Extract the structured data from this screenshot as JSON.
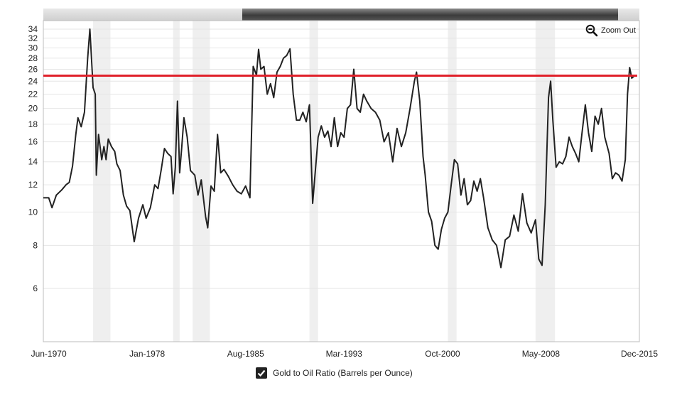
{
  "zoom": {
    "label": "Zoom Out",
    "icon": "zoom-out-icon"
  },
  "legend": {
    "checked": true,
    "label": "Gold to Oil Ratio (Barrels per Ounce)",
    "icon": "checkmark-icon"
  },
  "colors": {
    "series": "#222222",
    "reference": "#e0202a",
    "recession": "#efefef",
    "grid": "#e6e6e6"
  },
  "chart_data": {
    "type": "line",
    "title": "",
    "xlabel": "",
    "ylabel": "",
    "y_scale": "log",
    "ylim": [
      4.2,
      36
    ],
    "xlim": [
      "1970-01",
      "2015-12"
    ],
    "grid": true,
    "y_ticks": [
      6,
      8,
      10,
      12,
      14,
      16,
      18,
      20,
      22,
      24,
      26,
      28,
      30,
      32,
      34
    ],
    "x_ticks": [
      {
        "date": "1970-06",
        "label": "Jun-1970"
      },
      {
        "date": "1978-01",
        "label": "Jan-1978"
      },
      {
        "date": "1985-08",
        "label": "Aug-1985"
      },
      {
        "date": "1993-03",
        "label": "Mar-1993"
      },
      {
        "date": "2000-10",
        "label": "Oct-2000"
      },
      {
        "date": "2008-05",
        "label": "May-2008"
      },
      {
        "date": "2015-12",
        "label": "Dec-2015"
      }
    ],
    "reference_line": 24.9,
    "recessions": [
      [
        "1973-11",
        "1975-03"
      ],
      [
        "1980-01",
        "1980-07"
      ],
      [
        "1981-07",
        "1982-11"
      ],
      [
        "1990-07",
        "1991-03"
      ],
      [
        "2001-03",
        "2001-11"
      ],
      [
        "2007-12",
        "2009-06"
      ]
    ],
    "series": [
      {
        "name": "Gold to Oil Ratio (Barrels per Ounce)",
        "points": [
          [
            "1970-01",
            11.0
          ],
          [
            "1970-06",
            11.0
          ],
          [
            "1970-09",
            10.3
          ],
          [
            "1971-01",
            11.2
          ],
          [
            "1971-06",
            11.6
          ],
          [
            "1971-10",
            12.0
          ],
          [
            "1972-01",
            12.2
          ],
          [
            "1972-04",
            13.6
          ],
          [
            "1972-07",
            16.8
          ],
          [
            "1972-09",
            18.8
          ],
          [
            "1972-12",
            17.7
          ],
          [
            "1973-03",
            19.5
          ],
          [
            "1973-06",
            28.0
          ],
          [
            "1973-08",
            34.0
          ],
          [
            "1973-09",
            30.0
          ],
          [
            "1973-11",
            23.0
          ],
          [
            "1974-01",
            22.0
          ],
          [
            "1974-02",
            12.8
          ],
          [
            "1974-04",
            16.8
          ],
          [
            "1974-07",
            14.2
          ],
          [
            "1974-09",
            15.5
          ],
          [
            "1974-11",
            14.2
          ],
          [
            "1975-01",
            16.3
          ],
          [
            "1975-04",
            15.5
          ],
          [
            "1975-07",
            15.0
          ],
          [
            "1975-09",
            13.8
          ],
          [
            "1975-12",
            13.2
          ],
          [
            "1976-03",
            11.2
          ],
          [
            "1976-06",
            10.4
          ],
          [
            "1976-09",
            10.1
          ],
          [
            "1977-01",
            8.2
          ],
          [
            "1977-05",
            9.6
          ],
          [
            "1977-09",
            10.5
          ],
          [
            "1977-12",
            9.6
          ],
          [
            "1978-04",
            10.3
          ],
          [
            "1978-08",
            12.0
          ],
          [
            "1978-11",
            11.7
          ],
          [
            "1979-02",
            13.3
          ],
          [
            "1979-05",
            15.3
          ],
          [
            "1979-08",
            14.8
          ],
          [
            "1979-11",
            14.5
          ],
          [
            "1980-01",
            11.3
          ],
          [
            "1980-03",
            13.5
          ],
          [
            "1980-05",
            21.0
          ],
          [
            "1980-07",
            13.0
          ],
          [
            "1980-09",
            15.5
          ],
          [
            "1980-11",
            18.8
          ],
          [
            "1981-02",
            16.5
          ],
          [
            "1981-05",
            13.2
          ],
          [
            "1981-09",
            12.8
          ],
          [
            "1981-12",
            11.2
          ],
          [
            "1982-03",
            12.4
          ],
          [
            "1982-07",
            9.7
          ],
          [
            "1982-09",
            9.0
          ],
          [
            "1982-12",
            11.9
          ],
          [
            "1983-03",
            11.5
          ],
          [
            "1983-06",
            16.8
          ],
          [
            "1983-09",
            13.0
          ],
          [
            "1983-12",
            13.3
          ],
          [
            "1984-04",
            12.7
          ],
          [
            "1984-08",
            12.0
          ],
          [
            "1984-12",
            11.5
          ],
          [
            "1985-04",
            11.3
          ],
          [
            "1985-08",
            11.9
          ],
          [
            "1985-12",
            11.0
          ],
          [
            "1986-03",
            26.5
          ],
          [
            "1986-06",
            25.0
          ],
          [
            "1986-08",
            29.7
          ],
          [
            "1986-10",
            26.0
          ],
          [
            "1987-01",
            26.5
          ],
          [
            "1987-04",
            22.0
          ],
          [
            "1987-07",
            23.6
          ],
          [
            "1987-10",
            21.5
          ],
          [
            "1988-01",
            25.5
          ],
          [
            "1988-04",
            26.5
          ],
          [
            "1988-07",
            28.0
          ],
          [
            "1988-10",
            28.5
          ],
          [
            "1989-01",
            29.8
          ],
          [
            "1989-04",
            22.0
          ],
          [
            "1989-07",
            18.5
          ],
          [
            "1989-10",
            18.5
          ],
          [
            "1990-01",
            19.5
          ],
          [
            "1990-04",
            18.3
          ],
          [
            "1990-07",
            20.5
          ],
          [
            "1990-10",
            10.6
          ],
          [
            "1991-03",
            16.5
          ],
          [
            "1991-06",
            17.8
          ],
          [
            "1991-09",
            16.5
          ],
          [
            "1991-12",
            17.2
          ],
          [
            "1992-03",
            15.5
          ],
          [
            "1992-06",
            18.8
          ],
          [
            "1992-09",
            15.5
          ],
          [
            "1992-12",
            17.0
          ],
          [
            "1993-03",
            16.5
          ],
          [
            "1993-06",
            20.0
          ],
          [
            "1993-09",
            20.5
          ],
          [
            "1993-12",
            26.0
          ],
          [
            "1994-03",
            20.0
          ],
          [
            "1994-06",
            19.5
          ],
          [
            "1994-09",
            22.0
          ],
          [
            "1994-12",
            21.0
          ],
          [
            "1995-04",
            20.0
          ],
          [
            "1995-08",
            19.5
          ],
          [
            "1995-12",
            18.5
          ],
          [
            "1996-04",
            16.0
          ],
          [
            "1996-08",
            17.0
          ],
          [
            "1996-12",
            14.0
          ],
          [
            "1997-04",
            17.5
          ],
          [
            "1997-08",
            15.5
          ],
          [
            "1997-12",
            17.0
          ],
          [
            "1998-04",
            20.0
          ],
          [
            "1998-08",
            24.0
          ],
          [
            "1998-10",
            25.5
          ],
          [
            "1999-01",
            21.0
          ],
          [
            "1999-04",
            14.5
          ],
          [
            "1999-06",
            12.8
          ],
          [
            "1999-09",
            10.0
          ],
          [
            "1999-12",
            9.4
          ],
          [
            "2000-03",
            8.0
          ],
          [
            "2000-06",
            7.8
          ],
          [
            "2000-09",
            8.9
          ],
          [
            "2000-12",
            9.6
          ],
          [
            "2001-03",
            10.0
          ],
          [
            "2001-06",
            12.0
          ],
          [
            "2001-09",
            14.2
          ],
          [
            "2001-12",
            13.8
          ],
          [
            "2002-03",
            11.2
          ],
          [
            "2002-06",
            12.5
          ],
          [
            "2002-09",
            10.5
          ],
          [
            "2002-12",
            10.8
          ],
          [
            "2003-03",
            12.3
          ],
          [
            "2003-06",
            11.5
          ],
          [
            "2003-09",
            12.5
          ],
          [
            "2003-12",
            11.0
          ],
          [
            "2004-04",
            9.0
          ],
          [
            "2004-08",
            8.3
          ],
          [
            "2004-12",
            8.0
          ],
          [
            "2005-04",
            6.9
          ],
          [
            "2005-08",
            8.3
          ],
          [
            "2005-12",
            8.5
          ],
          [
            "2006-04",
            9.8
          ],
          [
            "2006-08",
            8.8
          ],
          [
            "2006-12",
            11.3
          ],
          [
            "2007-04",
            9.3
          ],
          [
            "2007-08",
            8.7
          ],
          [
            "2007-12",
            9.5
          ],
          [
            "2008-03",
            7.3
          ],
          [
            "2008-06",
            7.0
          ],
          [
            "2008-09",
            10.5
          ],
          [
            "2008-12",
            21.5
          ],
          [
            "2009-02",
            24.0
          ],
          [
            "2009-04",
            18.5
          ],
          [
            "2009-07",
            13.5
          ],
          [
            "2009-10",
            14.0
          ],
          [
            "2010-01",
            13.8
          ],
          [
            "2010-04",
            14.5
          ],
          [
            "2010-07",
            16.5
          ],
          [
            "2010-10",
            15.5
          ],
          [
            "2011-01",
            14.8
          ],
          [
            "2011-04",
            14.0
          ],
          [
            "2011-07",
            17.0
          ],
          [
            "2011-10",
            20.5
          ],
          [
            "2012-01",
            17.0
          ],
          [
            "2012-04",
            15.0
          ],
          [
            "2012-07",
            19.0
          ],
          [
            "2012-10",
            18.0
          ],
          [
            "2013-01",
            20.0
          ],
          [
            "2013-04",
            16.5
          ],
          [
            "2013-08",
            14.8
          ],
          [
            "2013-11",
            12.5
          ],
          [
            "2014-02",
            13.0
          ],
          [
            "2014-05",
            12.8
          ],
          [
            "2014-08",
            12.3
          ],
          [
            "2014-11",
            14.2
          ],
          [
            "2015-01",
            22.0
          ],
          [
            "2015-03",
            26.3
          ],
          [
            "2015-05",
            24.5
          ],
          [
            "2015-07",
            24.8
          ]
        ]
      }
    ]
  }
}
